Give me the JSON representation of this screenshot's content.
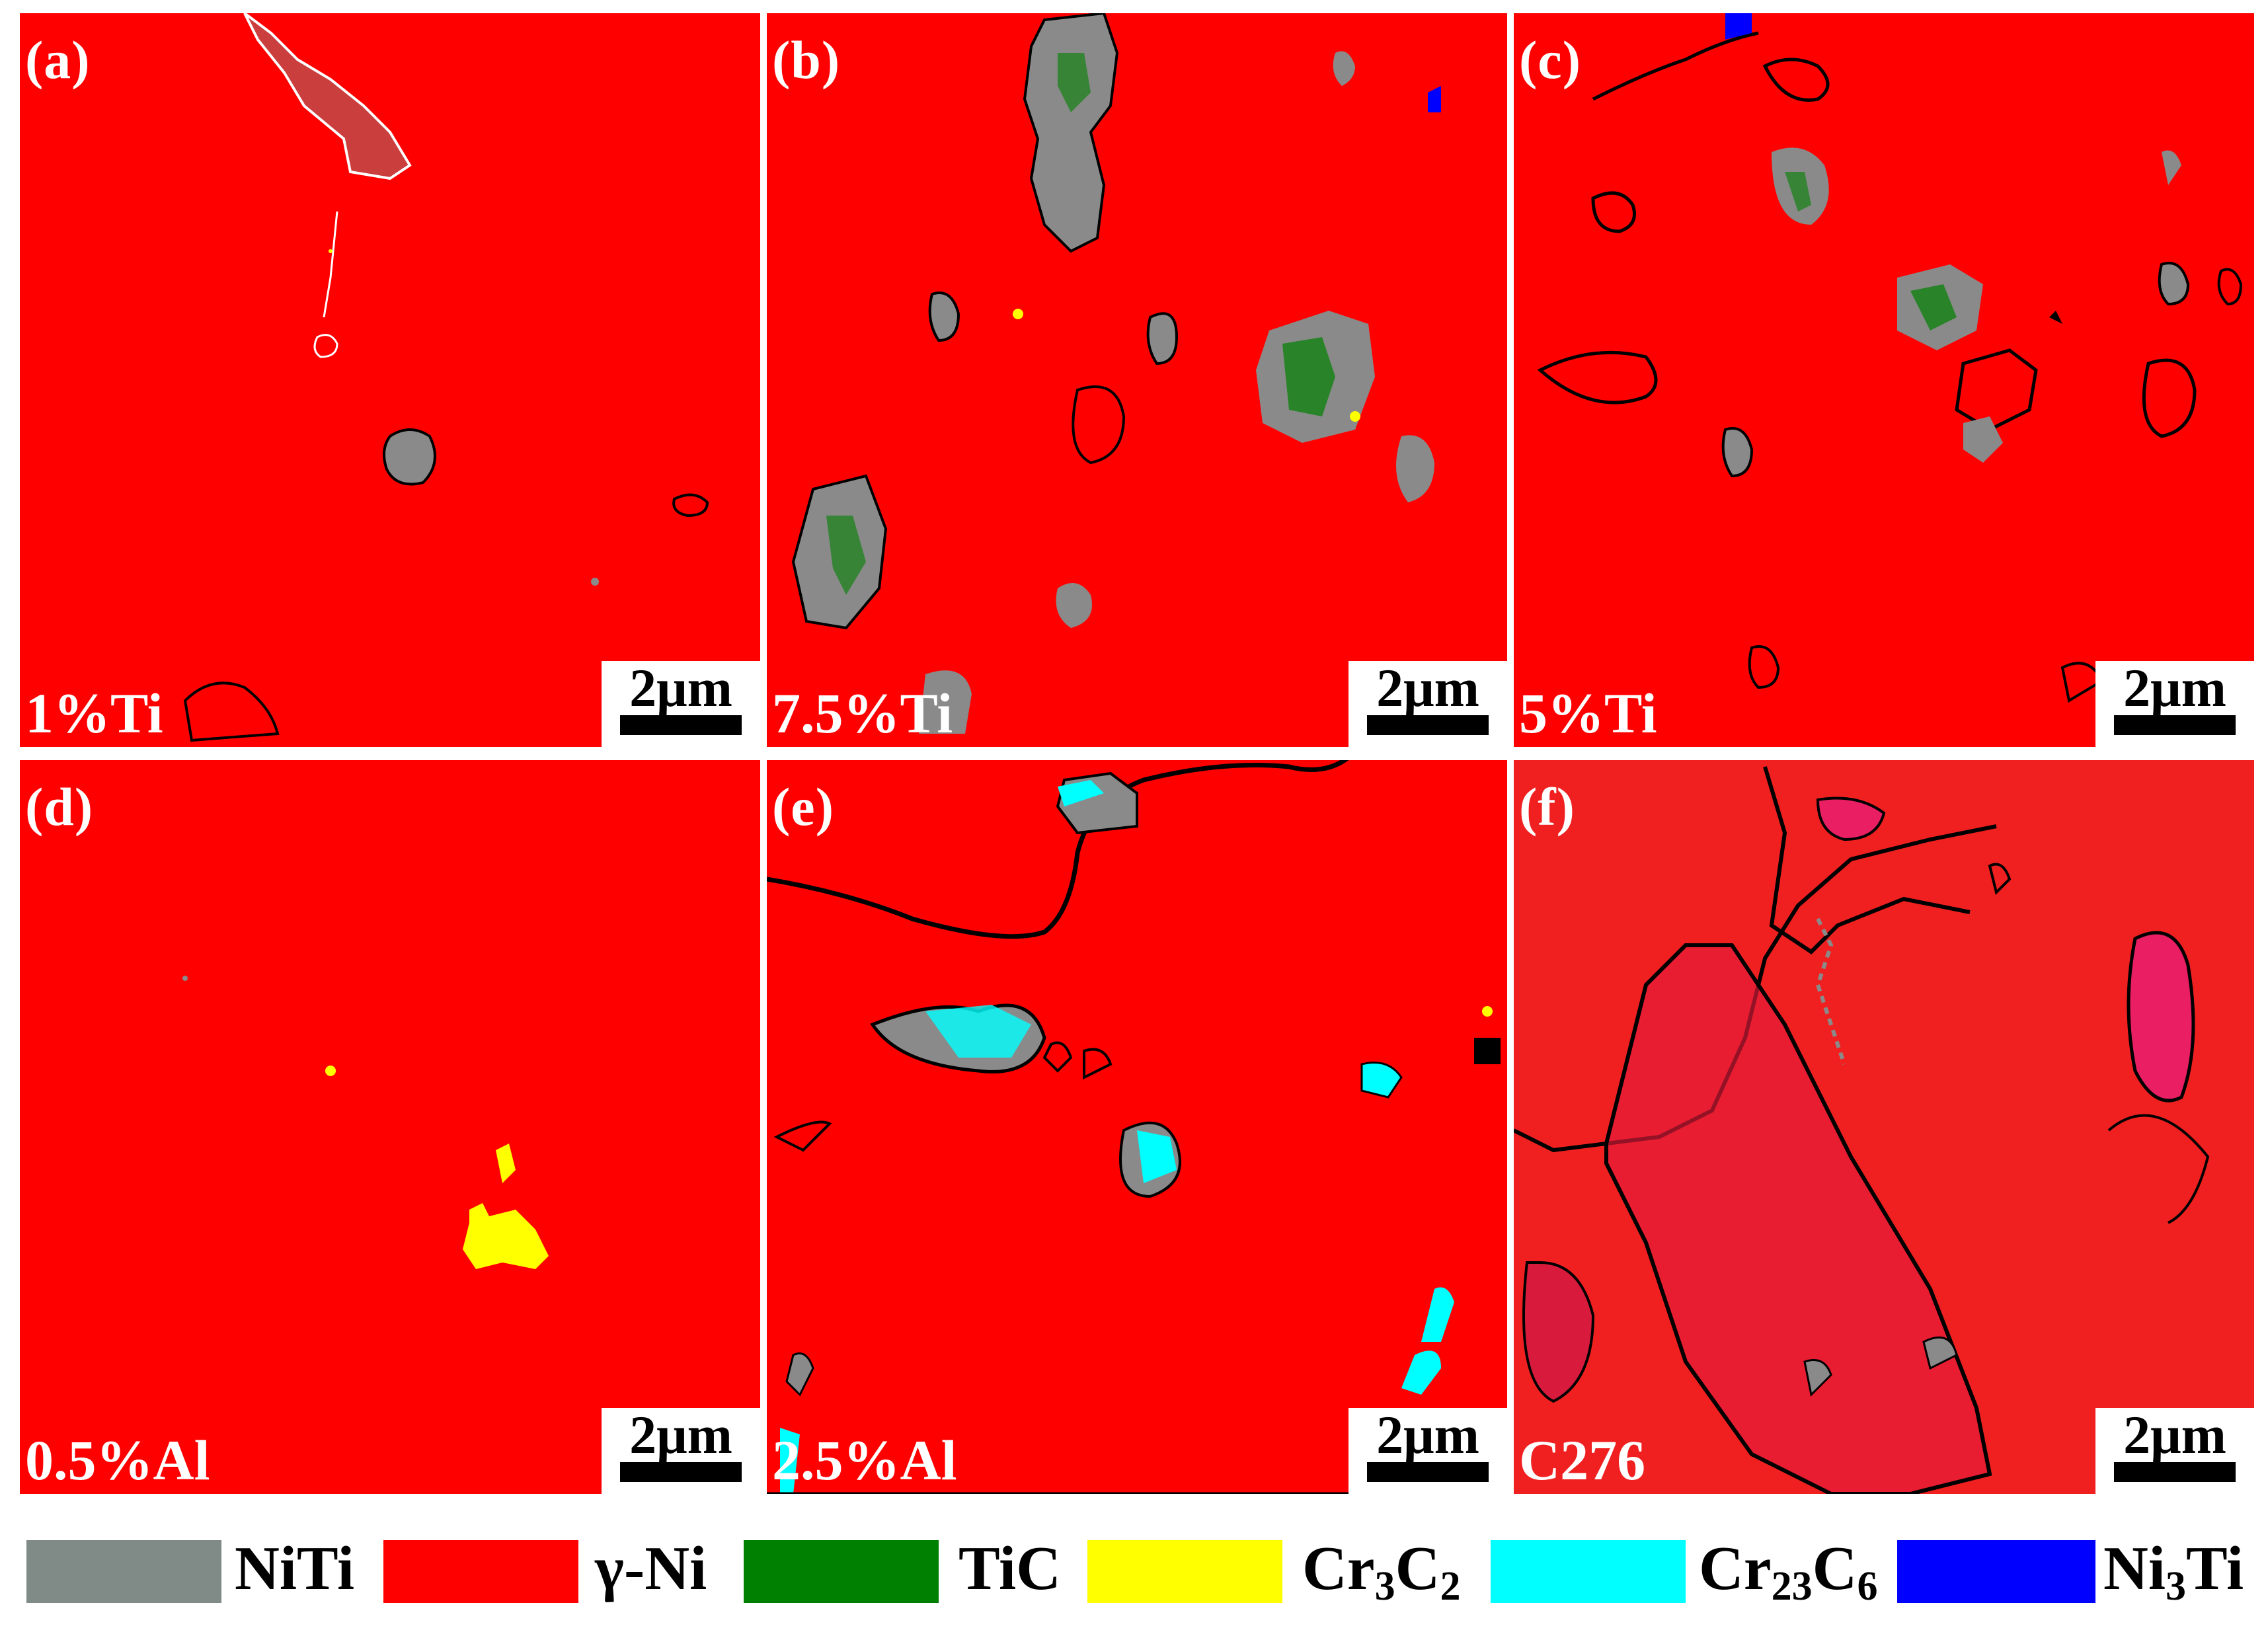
{
  "panels": {
    "a": {
      "label": "(a)",
      "composition": "1%Ti",
      "scale": "2μm"
    },
    "b": {
      "label": "(b)",
      "composition": "7.5%Ti",
      "scale": "2μm"
    },
    "c": {
      "label": "(c)",
      "composition": "5%Ti",
      "scale": "2μm"
    },
    "d": {
      "label": "(d)",
      "composition": "0.5%Al",
      "scale": "2μm"
    },
    "e": {
      "label": "(e)",
      "composition": "2.5%Al",
      "scale": "2μm"
    },
    "f": {
      "label": "(f)",
      "composition": "C276",
      "scale": "2μm"
    }
  },
  "legend": {
    "niti": {
      "label": "NiTi",
      "color": "#808a87"
    },
    "gni": {
      "label": "γ-Ni",
      "color": "#ff0000"
    },
    "tic": {
      "label": "TiC",
      "color": "#008000"
    },
    "cr3c2": {
      "base1": "Cr",
      "sub1": "3",
      "base2": "C",
      "sub2": "2",
      "color": "#ffff00"
    },
    "cr23c6": {
      "base1": "Cr",
      "sub1": "23",
      "base2": "C",
      "sub2": "6",
      "color": "#00ffff"
    },
    "ni3ti": {
      "base1": "Ni",
      "sub1": "3",
      "base2": "Ti",
      "color": "#0000ff"
    }
  }
}
